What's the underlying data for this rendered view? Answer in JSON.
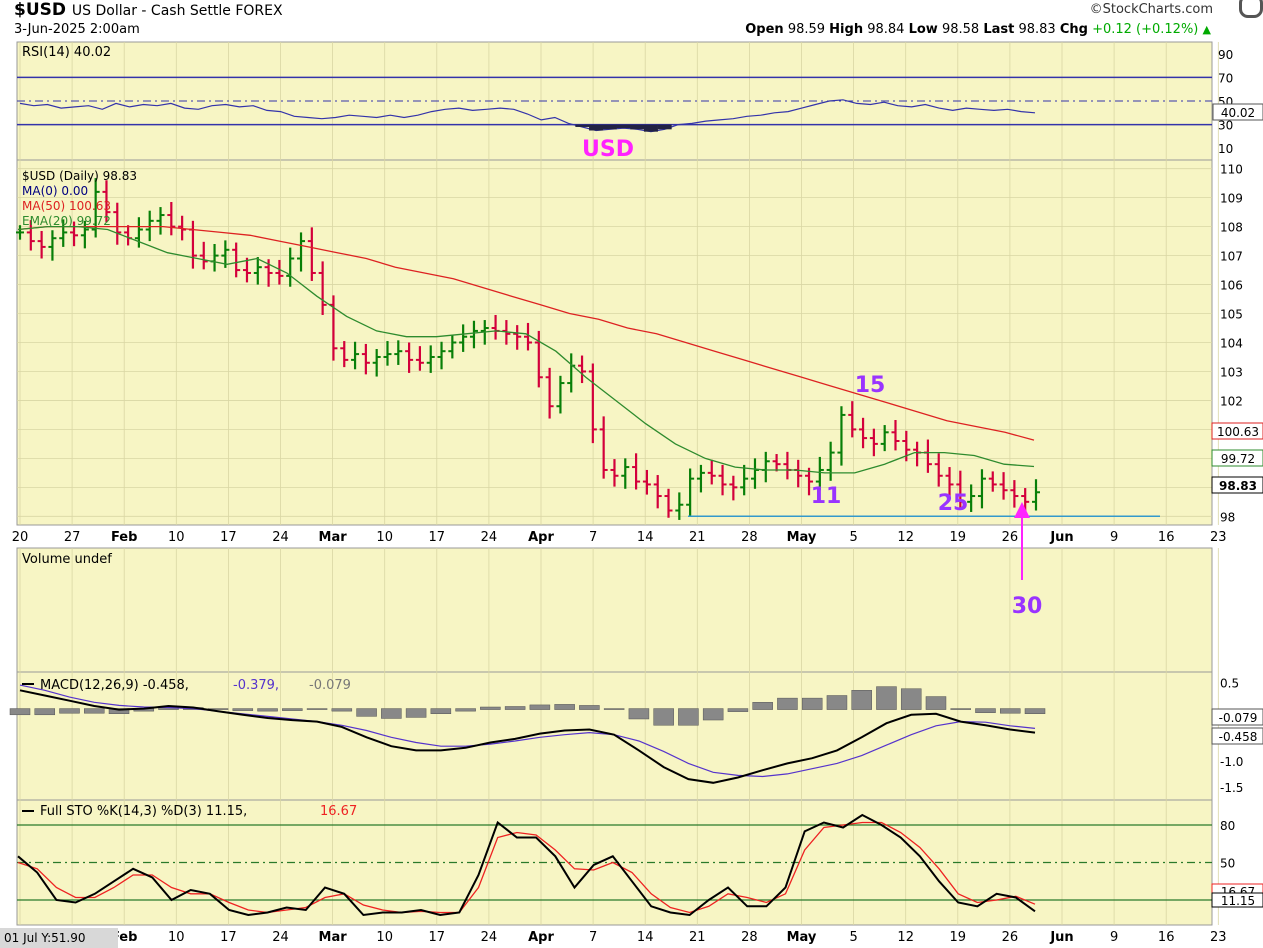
{
  "header": {
    "symbol": "$USD",
    "description": "US Dollar - Cash Settle FOREX",
    "datetime": "3-Jun-2025 2:00am",
    "brand": "©StockCharts.com",
    "open_label": "Open",
    "open": "98.59",
    "high_label": "High",
    "high": "98.84",
    "low_label": "Low",
    "low": "98.58",
    "last_label": "Last",
    "last": "98.83",
    "chg_label": "Chg",
    "chg": "+0.12 (+0.12%)",
    "chg_arrow": "▲"
  },
  "footer": {
    "readout": "01 Jul Y:51.90"
  },
  "colors": {
    "panel_bg": "#f7f5c4",
    "grid": "#d9d6a4",
    "up_bar": "#087f08",
    "down_bar": "#d3003b",
    "ma50": "#dd2222",
    "ema20": "#2e8b2e",
    "rsi_line": "#3333aa",
    "rsi_fill": "#222244",
    "macd_line": "#000000",
    "signal_line": "#5533cc",
    "histogram": "#888888",
    "sto_k": "#000000",
    "sto_d": "#ee2222",
    "annotation": "#9933ff",
    "arrow": "#ff22ff",
    "support": "#3399cc"
  },
  "chart_data": [
    {
      "type": "line",
      "panel": "rsi",
      "legend": "RSI(14) 40.02",
      "title_annotation": "USD",
      "y_ticks": [
        "90",
        "70",
        "50",
        "30",
        "10"
      ],
      "ylim": [
        0,
        100
      ],
      "levels": [
        70,
        50,
        30
      ],
      "value_label": "40.02",
      "series": [
        {
          "name": "RSI(14)",
          "values": [
            48,
            46,
            47,
            44,
            45,
            46,
            43,
            48,
            45,
            47,
            46,
            48,
            44,
            43,
            46,
            47,
            45,
            46,
            42,
            41,
            37,
            36,
            35,
            36,
            38,
            37,
            36,
            38,
            36,
            38,
            41,
            43,
            44,
            42,
            43,
            44,
            43,
            39,
            34,
            36,
            31,
            28,
            25,
            26,
            27,
            26,
            24,
            26,
            30,
            31,
            33,
            34,
            35,
            37,
            38,
            40,
            41,
            44,
            47,
            50,
            51,
            48,
            47,
            49,
            46,
            45,
            47,
            44,
            42,
            44,
            43,
            42,
            43,
            41,
            40
          ]
        }
      ]
    },
    {
      "type": "ohlc",
      "panel": "price",
      "legend": [
        "$USD (Daily) 98.83",
        "MA(0) 0.00",
        "MA(50) 100.63",
        "EMA(20) 99.72"
      ],
      "y_ticks": [
        "110",
        "109",
        "108",
        "107",
        "106",
        "105",
        "104",
        "103",
        "102",
        "101",
        "100",
        "99",
        "98"
      ],
      "ylim": [
        97.7,
        110.3
      ],
      "right_labels": [
        "100.63",
        "99.72",
        "98.83"
      ],
      "support_level": 98.0,
      "annotations": [
        {
          "text": "15",
          "x": "May 12",
          "y": 102.1
        },
        {
          "text": "11",
          "x": "May 9",
          "y": 99.1
        },
        {
          "text": "25",
          "x": "May 26",
          "y": 98.4
        },
        {
          "text": "30",
          "x": "Jun 2",
          "y": 97.0
        }
      ],
      "closes": [
        107.8,
        107.5,
        107.3,
        107.6,
        107.8,
        107.7,
        107.9,
        109.2,
        108.5,
        107.8,
        107.6,
        107.9,
        108.2,
        108.4,
        108.0,
        107.9,
        107.0,
        106.8,
        107.0,
        107.2,
        106.5,
        106.4,
        106.6,
        106.4,
        106.3,
        106.9,
        107.5,
        106.4,
        105.3,
        103.8,
        103.4,
        103.6,
        103.3,
        103.5,
        103.6,
        103.7,
        103.4,
        103.3,
        103.5,
        103.7,
        104.0,
        104.2,
        104.4,
        104.5,
        104.4,
        104.3,
        104.2,
        104.0,
        102.8,
        101.8,
        102.6,
        103.2,
        103.0,
        101.0,
        99.6,
        99.4,
        99.7,
        99.2,
        99.1,
        98.7,
        98.2,
        98.4,
        99.3,
        99.5,
        99.4,
        99.1,
        99.0,
        99.3,
        99.6,
        99.9,
        99.8,
        99.6,
        99.4,
        99.2,
        99.6,
        100.2,
        101.5,
        101.0,
        100.7,
        100.5,
        100.9,
        100.6,
        100.3,
        100.2,
        99.8,
        99.4,
        99.1,
        98.5,
        98.7,
        99.3,
        99.1,
        98.9,
        98.7,
        98.5,
        98.83
      ],
      "series": [
        {
          "name": "MA(50)",
          "values": [
            107.9,
            108.0,
            108.0,
            108.0,
            108.0,
            108.0,
            107.9,
            107.8,
            107.7,
            107.5,
            107.3,
            107.1,
            106.9,
            106.6,
            106.4,
            106.2,
            105.9,
            105.6,
            105.3,
            105.0,
            104.8,
            104.5,
            104.3,
            104.0,
            103.7,
            103.4,
            103.1,
            102.8,
            102.5,
            102.2,
            101.9,
            101.6,
            101.3,
            101.1,
            100.9,
            100.63
          ]
        },
        {
          "name": "EMA(20)",
          "values": [
            107.9,
            108.0,
            108.0,
            107.9,
            107.5,
            107.1,
            106.9,
            106.7,
            106.9,
            106.4,
            105.6,
            104.9,
            104.4,
            104.2,
            104.2,
            104.3,
            104.4,
            104.3,
            103.7,
            102.8,
            102.0,
            101.2,
            100.5,
            100.0,
            99.7,
            99.6,
            99.6,
            99.5,
            99.5,
            99.8,
            100.2,
            100.2,
            100.1,
            99.8,
            99.72
          ]
        }
      ]
    },
    {
      "type": "bar",
      "panel": "volume",
      "legend": "Volume undef",
      "values": []
    },
    {
      "type": "line",
      "panel": "macd",
      "legend": "MACD(12,26,9) -0.458, -0.379, -0.079",
      "legend_parts": [
        "MACD(12,26,9) -0.458,",
        "-0.379,",
        "-0.079"
      ],
      "y_ticks": [
        "0.5",
        "0.0",
        "-0.5",
        "-1.0",
        "-1.5"
      ],
      "ylim": [
        -1.75,
        0.7
      ],
      "right_labels": [
        "-0.079",
        "-0.458"
      ],
      "series": [
        {
          "name": "MACD",
          "values": [
            0.35,
            0.25,
            0.15,
            0.05,
            -0.02,
            0.0,
            0.05,
            0.02,
            -0.05,
            -0.12,
            -0.18,
            -0.22,
            -0.25,
            -0.35,
            -0.55,
            -0.72,
            -0.8,
            -0.8,
            -0.75,
            -0.65,
            -0.58,
            -0.48,
            -0.42,
            -0.4,
            -0.5,
            -0.8,
            -1.12,
            -1.35,
            -1.42,
            -1.32,
            -1.18,
            -1.05,
            -0.95,
            -0.8,
            -0.55,
            -0.28,
            -0.12,
            -0.1,
            -0.25,
            -0.32,
            -0.4,
            -0.46
          ]
        },
        {
          "name": "Signal",
          "values": [
            0.45,
            0.35,
            0.22,
            0.12,
            0.06,
            0.03,
            0.02,
            0.0,
            -0.05,
            -0.1,
            -0.15,
            -0.2,
            -0.25,
            -0.32,
            -0.42,
            -0.55,
            -0.65,
            -0.72,
            -0.72,
            -0.68,
            -0.62,
            -0.55,
            -0.5,
            -0.46,
            -0.5,
            -0.62,
            -0.82,
            -1.05,
            -1.22,
            -1.28,
            -1.3,
            -1.25,
            -1.15,
            -1.05,
            -0.9,
            -0.7,
            -0.5,
            -0.33,
            -0.25,
            -0.26,
            -0.33,
            -0.38
          ]
        }
      ]
    },
    {
      "type": "line",
      "panel": "stochastic",
      "legend": "Full STO %K(14,3) %D(3) 11.15, 16.67",
      "legend_parts": [
        "Full STO %K(14,3) %D(3) 11.15,",
        "16.67"
      ],
      "y_ticks": [
        "80",
        "50",
        "20"
      ],
      "ylim": [
        0,
        100
      ],
      "levels": [
        80,
        50,
        20
      ],
      "right_labels": [
        "16.67",
        "11.15"
      ],
      "series": [
        {
          "name": "%K",
          "values": [
            55,
            42,
            20,
            18,
            25,
            35,
            45,
            38,
            20,
            28,
            25,
            12,
            8,
            10,
            14,
            12,
            30,
            25,
            8,
            10,
            10,
            12,
            8,
            10,
            40,
            82,
            70,
            70,
            55,
            30,
            48,
            55,
            35,
            15,
            10,
            8,
            20,
            30,
            15,
            15,
            30,
            75,
            82,
            78,
            88,
            80,
            70,
            55,
            35,
            18,
            15,
            25,
            22,
            11
          ]
        },
        {
          "name": "%D",
          "values": [
            50,
            45,
            30,
            22,
            22,
            30,
            40,
            40,
            30,
            25,
            25,
            18,
            12,
            10,
            12,
            14,
            22,
            25,
            16,
            12,
            10,
            11,
            10,
            10,
            30,
            70,
            74,
            72,
            60,
            45,
            44,
            50,
            42,
            25,
            14,
            10,
            15,
            25,
            22,
            18,
            25,
            60,
            78,
            80,
            82,
            82,
            74,
            62,
            45,
            25,
            18,
            20,
            23,
            16.67
          ]
        }
      ]
    }
  ],
  "x_axis": {
    "labels": [
      "20",
      "27",
      "Feb",
      "10",
      "17",
      "24",
      "Mar",
      "10",
      "17",
      "24",
      "Apr",
      "7",
      "14",
      "21",
      "28",
      "May",
      "5",
      "12",
      "19",
      "26",
      "Jun",
      "9",
      "16",
      "23"
    ],
    "bold": [
      "Feb",
      "Mar",
      "Apr",
      "May",
      "Jun"
    ]
  }
}
